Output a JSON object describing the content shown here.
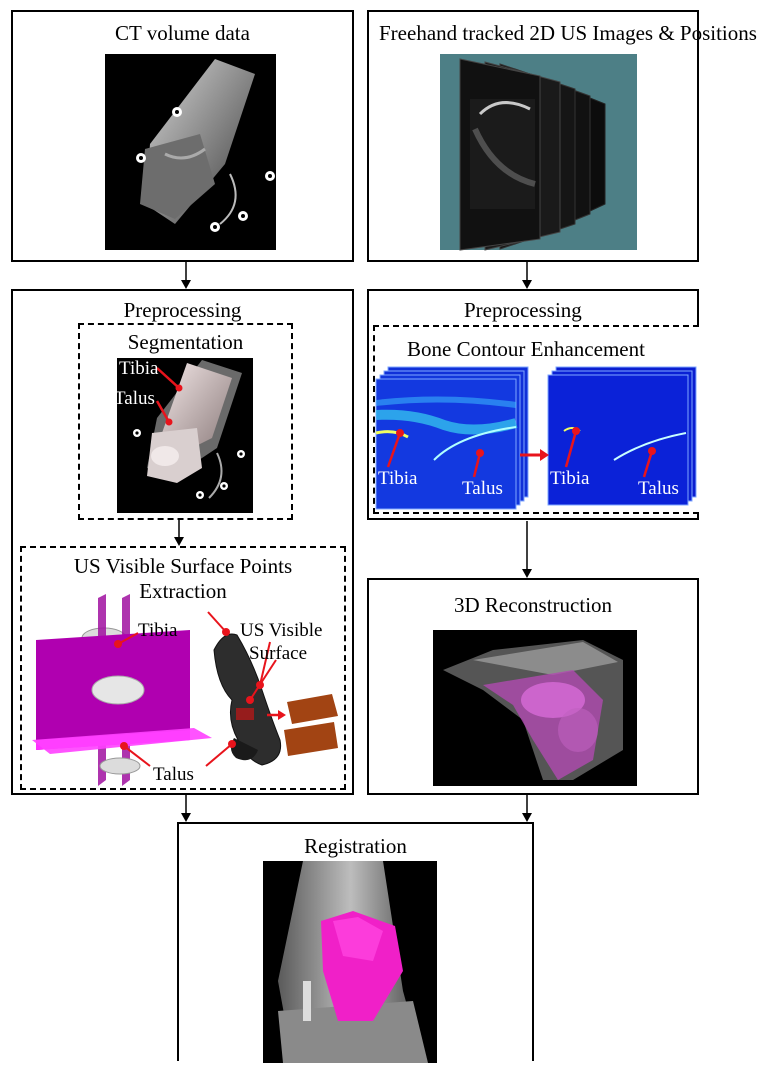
{
  "ct_panel": {
    "title": "CT volume data"
  },
  "us_panel": {
    "title": "Freehand tracked 2D US Images & Positions"
  },
  "ct_preprocessing": {
    "title": "Preprocessing",
    "segmentation": {
      "title": "Segmentation",
      "labels": [
        "Tibia",
        "Talus"
      ]
    },
    "surface_extraction": {
      "title_line1": "US Visible Surface Points",
      "title_line2": "Extraction",
      "labels": {
        "tibia": "Tibia",
        "us_visible_1": "US Visible",
        "us_visible_2": "Surface",
        "talus": "Talus"
      }
    }
  },
  "us_preprocessing": {
    "title": "Preprocessing",
    "enhancement": {
      "title": "Bone Contour Enhancement",
      "labels": [
        "Tibia",
        "Talus",
        "Tibia",
        "Talus"
      ]
    }
  },
  "reconstruction": {
    "title": "3D Reconstruction"
  },
  "registration": {
    "title": "Registration"
  },
  "colors": {
    "annotation_red": "#e8141c",
    "magenta": "#cc00cc",
    "us_blue": "#1032e0",
    "us_bg": "#4d7f86"
  }
}
